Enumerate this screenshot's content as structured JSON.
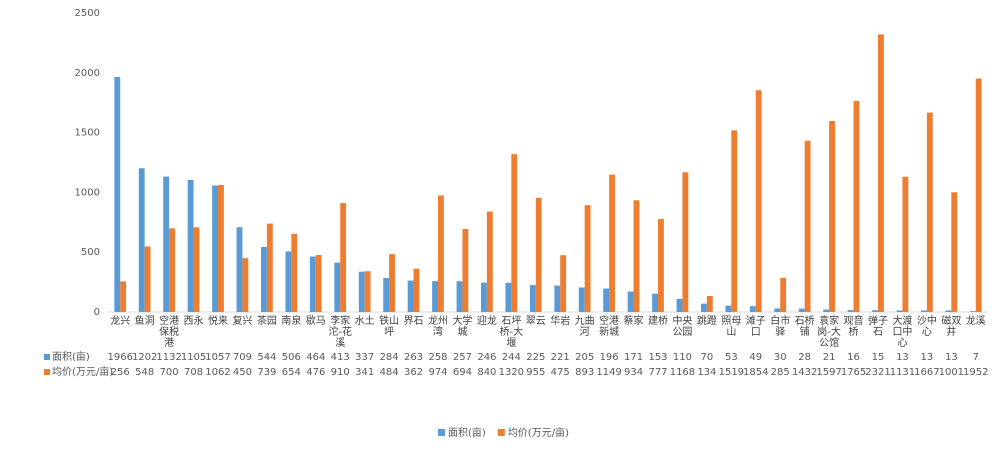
{
  "chart_data": {
    "type": "bar",
    "categories": [
      "龙兴",
      "鱼洞",
      "空港\n保税\n港",
      "西永",
      "悦来",
      "复兴",
      "茶园",
      "南泉",
      "歇马",
      "李家\n沱-花\n溪",
      "水土",
      "铁山\n坪",
      "界石",
      "龙州\n湾",
      "大学\n城",
      "迎龙",
      "石坪\n桥-大\n堰",
      "翠云",
      "华岩",
      "九曲\n河",
      "空港\n新城",
      "蔡家",
      "建桥",
      "中央\n公园",
      "跳蹬",
      "照母\n山",
      "滩子\n口",
      "白市\n驿",
      "石桥\n铺",
      "袁家\n岗-大\n公馆",
      "观音\n桥",
      "弹子\n石",
      "大渡\n口中\n心",
      "沙中\n心",
      "磁双\n井",
      "龙溪"
    ],
    "series": [
      {
        "name": "面积(亩)",
        "color": "#5b9bd5",
        "values": [
          1966,
          1202,
          1132,
          1105,
          1057,
          709,
          544,
          506,
          464,
          413,
          337,
          284,
          263,
          258,
          257,
          246,
          244,
          225,
          221,
          205,
          196,
          171,
          153,
          110,
          70,
          53,
          49,
          30,
          28,
          21,
          16,
          15,
          13,
          13,
          13,
          7
        ]
      },
      {
        "name": "均价(万元/亩)",
        "color": "#ed7d31",
        "values": [
          256,
          548,
          700,
          708,
          1062,
          450,
          739,
          654,
          476,
          910,
          341,
          484,
          362,
          974,
          694,
          840,
          1320,
          955,
          475,
          893,
          1149,
          934,
          777,
          1168,
          134,
          1519,
          1854,
          285,
          1432,
          1597,
          1765,
          2321,
          1131,
          1667,
          1001,
          1952
        ]
      }
    ],
    "ylim": [
      0,
      2500
    ],
    "yticks": [
      0,
      500,
      1000,
      1500,
      2000,
      2500
    ],
    "grid": false,
    "legend": "bottom"
  }
}
